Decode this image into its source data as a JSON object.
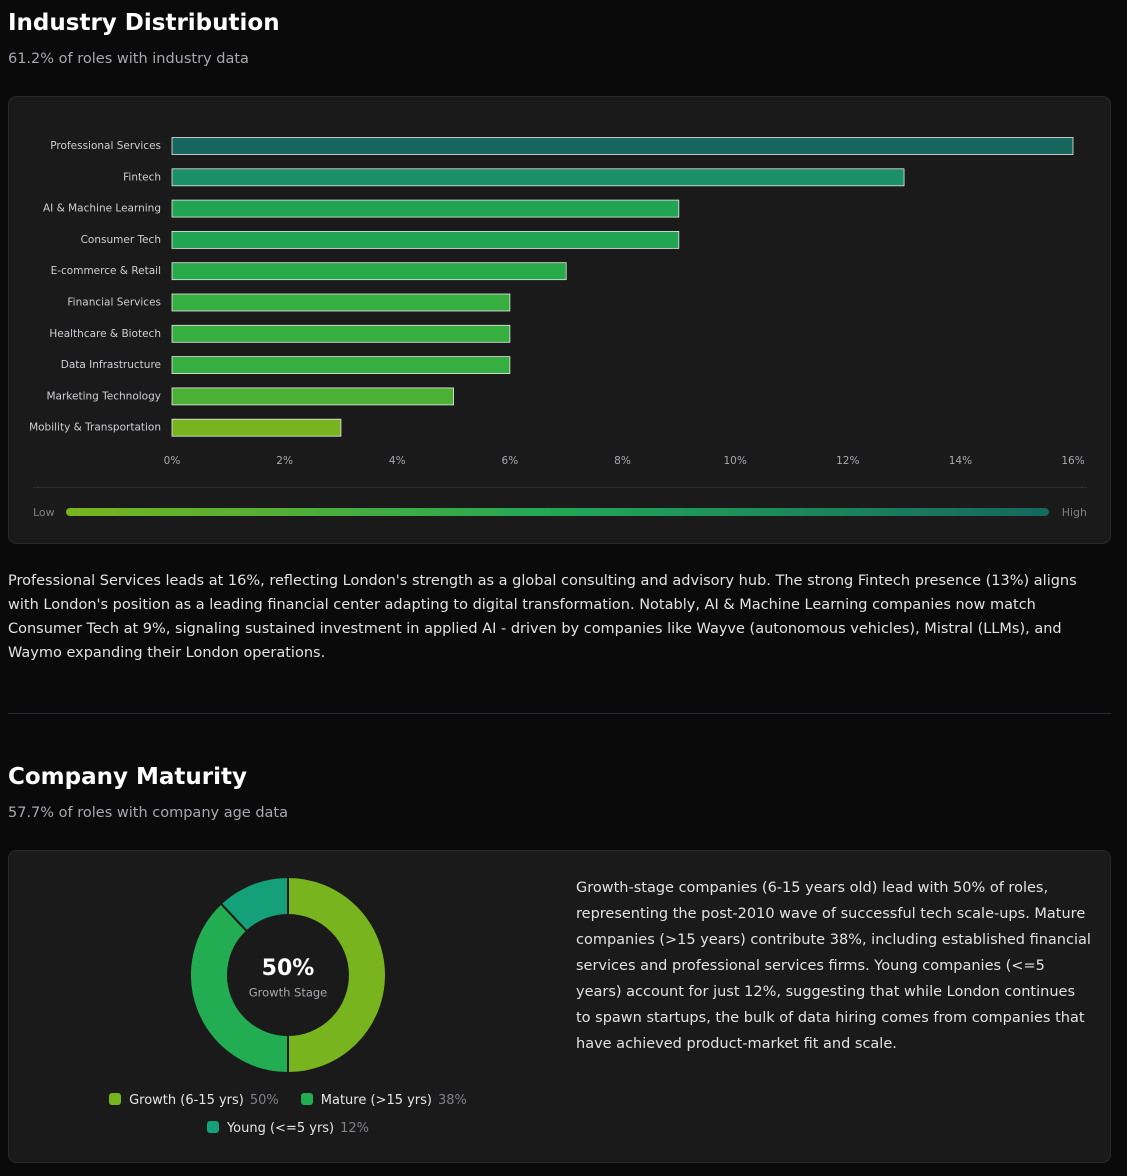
{
  "chart_data": [
    {
      "type": "bar",
      "orientation": "horizontal",
      "title": "Industry Distribution",
      "subtitle": "61.2% of roles with industry data",
      "categories": [
        "Professional Services",
        "Fintech",
        "AI & Machine Learning",
        "Consumer Tech",
        "E-commerce & Retail",
        "Financial Services",
        "Healthcare & Biotech",
        "Data Infrastructure",
        "Marketing Technology",
        "Mobility & Transportation"
      ],
      "values": [
        16,
        13,
        9,
        9,
        7,
        6,
        6,
        6,
        5,
        3
      ],
      "colors": [
        "#17665e",
        "#1b9068",
        "#22a553",
        "#22a553",
        "#28aa48",
        "#36ae40",
        "#36ae40",
        "#36ae40",
        "#4caf36",
        "#78b41e"
      ],
      "xlim": [
        0,
        16
      ],
      "xticks": [
        {
          "value": 0,
          "label": "0%"
        },
        {
          "value": 2,
          "label": "2%"
        },
        {
          "value": 4,
          "label": "4%"
        },
        {
          "value": 6,
          "label": "6%"
        },
        {
          "value": 8,
          "label": "8%"
        },
        {
          "value": 10,
          "label": "10%"
        },
        {
          "value": 12,
          "label": "12%"
        },
        {
          "value": 14,
          "label": "14%"
        },
        {
          "value": 16,
          "label": "16%"
        }
      ],
      "grid": false,
      "scale_low_label": "Low",
      "scale_high_label": "High",
      "scale_colors": [
        "#78b41e",
        "#22a757",
        "#16675f"
      ],
      "description": "Professional Services leads at 16%, reflecting London's strength as a global consulting and advisory hub. The strong Fintech presence (13%) aligns with London's position as a leading financial center adapting to digital transformation. Notably, AI & Machine Learning companies now match Consumer Tech at 9%, signaling sustained investment in applied AI - driven by companies like Wayve (autonomous vehicles), Mistral (LLMs), and Waymo expanding their London operations."
    },
    {
      "type": "donut",
      "title": "Company Maturity",
      "subtitle": "57.7% of roles with company age data",
      "categories": [
        "Growth (6-15 yrs)",
        "Mature (>15 yrs)",
        "Young (<=5 yrs)"
      ],
      "values": [
        50,
        38,
        12
      ],
      "value_labels": [
        "50%",
        "38%",
        "12%"
      ],
      "colors": [
        "#78b41e",
        "#22ad52",
        "#14a078"
      ],
      "center_text": "50%",
      "center_subtext": "Growth Stage",
      "description": "Growth-stage companies (6-15 years old) lead with 50% of roles, representing the post-2010 wave of successful tech scale-ups. Mature companies (>15 years) contribute 38%, including established financial services and professional services firms. Young companies (<=5 years) account for just 12%, suggesting that while London continues to spawn startups, the bulk of data hiring comes from companies that have achieved product-market fit and scale."
    }
  ]
}
